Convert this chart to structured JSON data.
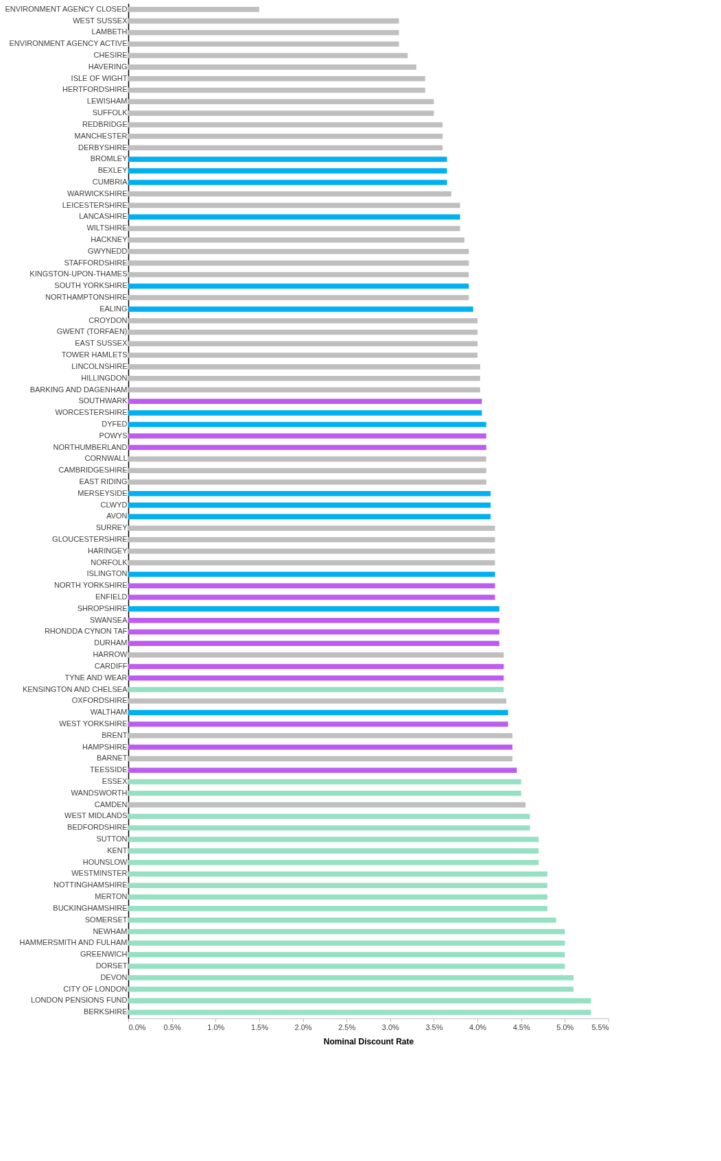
{
  "chart_data": {
    "type": "bar",
    "orientation": "horizontal",
    "xlabel": "Nominal Discount Rate",
    "categories": [
      "ENVIRONMENT AGENCY CLOSED",
      "WEST SUSSEX",
      "LAMBETH",
      "ENVIRONMENT AGENCY ACTIVE",
      "CHESIRE",
      "HAVERING",
      "ISLE OF WIGHT",
      "HERTFORDSHIRE",
      "LEWISHAM",
      "SUFFOLK",
      "REDBRIDGE",
      "MANCHESTER",
      "DERBYSHIRE",
      "BROMLEY",
      "BEXLEY",
      "CUMBRIA",
      "WARWICKSHIRE",
      "LEICESTERSHIRE",
      "LANCASHIRE",
      "WILTSHIRE",
      "HACKNEY",
      "GWYNEDD",
      "STAFFORDSHIRE",
      "KINGSTON-UPON-THAMES",
      "SOUTH YORKSHIRE",
      "NORTHAMPTONSHIRE",
      "EALING",
      "CROYDON",
      "GWENT (TORFAEN)",
      "EAST SUSSEX",
      "TOWER HAMLETS",
      "LINCOLNSHIRE",
      "HILLINGDON",
      "BARKING AND DAGENHAM",
      "SOUTHWARK",
      "WORCESTERSHIRE",
      "DYFED",
      "POWYS",
      "NORTHUMBERLAND",
      "CORNWALL",
      "CAMBRIDGESHIRE",
      "EAST RIDING",
      "MERSEYSIDE",
      "CLWYD",
      "AVON",
      "SURREY",
      "GLOUCESTERSHIRE",
      "HARINGEY",
      "NORFOLK",
      "ISLINGTON",
      "NORTH YORKSHIRE",
      "ENFIELD",
      "SHROPSHIRE",
      "SWANSEA",
      "RHONDDA CYNON TAF",
      "DURHAM",
      "HARROW",
      "CARDIFF",
      "TYNE AND WEAR",
      "KENSINGTON AND CHELSEA",
      "OXFORDSHIRE",
      "WALTHAM",
      "WEST YORKSHIRE",
      "BRENT",
      "HAMPSHIRE",
      "BARNET",
      "TEESSIDE",
      "ESSEX",
      "WANDSWORTH",
      "CAMDEN",
      "WEST MIDLANDS",
      "BEDFORDSHIRE",
      "SUTTON",
      "KENT",
      "HOUNSLOW",
      "WESTMINSTER",
      "NOTTINGHAMSHIRE",
      "MERTON",
      "BUCKINGHAMSHIRE",
      "SOMERSET",
      "NEWHAM",
      "HAMMERSMITH AND FULHAM",
      "GREENWICH",
      "DORSET",
      "DEVON",
      "CITY OF LONDON",
      "LONDON PENSIONS FUND",
      "BERKSHIRE"
    ],
    "values": [
      1.5,
      3.1,
      3.1,
      3.1,
      3.2,
      3.3,
      3.4,
      3.4,
      3.5,
      3.5,
      3.6,
      3.6,
      3.6,
      3.65,
      3.65,
      3.65,
      3.7,
      3.8,
      3.8,
      3.8,
      3.85,
      3.9,
      3.9,
      3.9,
      3.9,
      3.9,
      3.95,
      4.0,
      4.0,
      4.0,
      4.0,
      4.03,
      4.03,
      4.03,
      4.05,
      4.05,
      4.1,
      4.1,
      4.1,
      4.1,
      4.1,
      4.1,
      4.15,
      4.15,
      4.15,
      4.2,
      4.2,
      4.2,
      4.2,
      4.2,
      4.2,
      4.2,
      4.25,
      4.25,
      4.25,
      4.25,
      4.3,
      4.3,
      4.3,
      4.3,
      4.33,
      4.35,
      4.35,
      4.4,
      4.4,
      4.4,
      4.45,
      4.5,
      4.5,
      4.55,
      4.6,
      4.6,
      4.7,
      4.7,
      4.7,
      4.8,
      4.8,
      4.8,
      4.8,
      4.9,
      5.0,
      5.0,
      5.0,
      5.0,
      5.1,
      5.1,
      5.3,
      5.3
    ],
    "colors": [
      "#bfbfbf",
      "#bfbfbf",
      "#bfbfbf",
      "#bfbfbf",
      "#bfbfbf",
      "#bfbfbf",
      "#bfbfbf",
      "#bfbfbf",
      "#bfbfbf",
      "#bfbfbf",
      "#bfbfbf",
      "#bfbfbf",
      "#bfbfbf",
      "#00b0f0",
      "#00b0f0",
      "#00b0f0",
      "#bfbfbf",
      "#bfbfbf",
      "#00b0f0",
      "#bfbfbf",
      "#bfbfbf",
      "#bfbfbf",
      "#bfbfbf",
      "#bfbfbf",
      "#00b0f0",
      "#bfbfbf",
      "#00b0f0",
      "#bfbfbf",
      "#bfbfbf",
      "#bfbfbf",
      "#bfbfbf",
      "#bfbfbf",
      "#bfbfbf",
      "#bfbfbf",
      "#bd5cf0",
      "#00b0f0",
      "#00b0f0",
      "#bd5cf0",
      "#bd5cf0",
      "#bfbfbf",
      "#bfbfbf",
      "#bfbfbf",
      "#00b0f0",
      "#00b0f0",
      "#00b0f0",
      "#bfbfbf",
      "#bfbfbf",
      "#bfbfbf",
      "#bfbfbf",
      "#00b0f0",
      "#bd5cf0",
      "#bd5cf0",
      "#00b0f0",
      "#bd5cf0",
      "#bd5cf0",
      "#bd5cf0",
      "#bfbfbf",
      "#bd5cf0",
      "#bd5cf0",
      "#96e0c4",
      "#bfbfbf",
      "#00b0f0",
      "#bd5cf0",
      "#bfbfbf",
      "#bd5cf0",
      "#bfbfbf",
      "#bd5cf0",
      "#96e0c4",
      "#96e0c4",
      "#bfbfbf",
      "#96e0c4",
      "#96e0c4",
      "#96e0c4",
      "#96e0c4",
      "#96e0c4",
      "#96e0c4",
      "#96e0c4",
      "#96e0c4",
      "#96e0c4",
      "#96e0c4",
      "#96e0c4",
      "#96e0c4",
      "#96e0c4",
      "#96e0c4",
      "#96e0c4",
      "#96e0c4",
      "#96e0c4",
      "#96e0c4"
    ],
    "xlim": [
      0,
      5.5
    ],
    "xticks": [
      {
        "value": 0,
        "label": "0.0%"
      },
      {
        "value": 0.5,
        "label": "0.5%"
      },
      {
        "value": 1,
        "label": "1.0%"
      },
      {
        "value": 1.5,
        "label": "1.5%"
      },
      {
        "value": 2,
        "label": "2.0%"
      },
      {
        "value": 2.5,
        "label": "2.5%"
      },
      {
        "value": 3,
        "label": "3.0%"
      },
      {
        "value": 3.5,
        "label": "3.5%"
      },
      {
        "value": 4,
        "label": "4.0%"
      },
      {
        "value": 4.5,
        "label": "4.5%"
      },
      {
        "value": 5,
        "label": "5.0%"
      },
      {
        "value": 5.5,
        "label": "5.5%"
      }
    ]
  }
}
